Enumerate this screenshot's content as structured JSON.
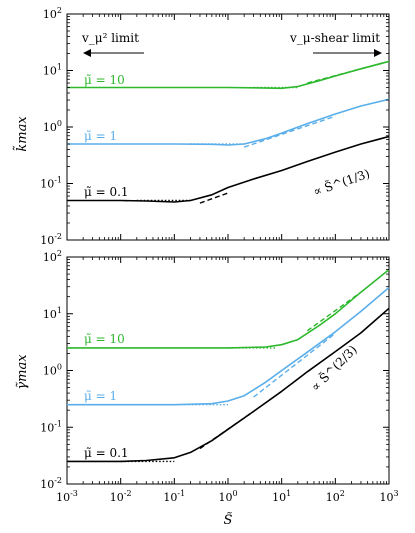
{
  "chart_data": [
    {
      "type": "line",
      "xscale": "log",
      "yscale": "log",
      "xlim": [
        0.001,
        1000
      ],
      "ylim": [
        0.01,
        100
      ],
      "ylabel": "k̃max",
      "xlabel": "",
      "grid": false,
      "x_tick_labels": [],
      "y_tick_labels": [
        "10^-2",
        "10^-1",
        "10^0",
        "10^1",
        "10^2"
      ],
      "annotations": {
        "left_limit": "v_μ² limit",
        "right_limit": "v_μ-shear limit",
        "scaling": "∝ S̃^(1/3)"
      },
      "series": [
        {
          "name": "μ̃ = 10",
          "color": "#2db82d",
          "x": [
            0.001,
            0.01,
            0.1,
            1,
            3,
            10,
            20,
            50,
            100,
            300,
            1000
          ],
          "y": [
            5.0,
            5.0,
            5.0,
            5.0,
            4.95,
            4.85,
            5.2,
            6.6,
            8.0,
            10.7,
            14.5
          ]
        },
        {
          "name": "μ̃ = 1",
          "color": "#5aaeea",
          "x": [
            0.001,
            0.01,
            0.1,
            0.5,
            1,
            2,
            5,
            10,
            30,
            100,
            300,
            1000
          ],
          "y": [
            0.5,
            0.5,
            0.5,
            0.495,
            0.48,
            0.5,
            0.62,
            0.78,
            1.15,
            1.7,
            2.35,
            3.1
          ]
        },
        {
          "name": "μ̃ = 0.1",
          "color": "#000000",
          "x": [
            0.001,
            0.01,
            0.03,
            0.1,
            0.2,
            0.5,
            1,
            3,
            10,
            30,
            100,
            300,
            1000
          ],
          "y": [
            0.05,
            0.05,
            0.049,
            0.047,
            0.05,
            0.063,
            0.085,
            0.12,
            0.17,
            0.245,
            0.36,
            0.5,
            0.68
          ]
        }
      ],
      "asymptotes": [
        {
          "color": "#2db82d",
          "style": "dotted",
          "x": [
            3,
            20
          ],
          "y": [
            5.0,
            5.0
          ]
        },
        {
          "color": "#2db82d",
          "style": "dashed",
          "x": [
            30,
            1000
          ],
          "y": [
            6.0,
            14.5
          ]
        },
        {
          "color": "#5aaeea",
          "style": "dotted",
          "x": [
            0.2,
            2
          ],
          "y": [
            0.5,
            0.5
          ]
        },
        {
          "color": "#5aaeea",
          "style": "dashed",
          "x": [
            2,
            100
          ],
          "y": [
            0.44,
            1.55
          ]
        },
        {
          "color": "#000000",
          "style": "dotted",
          "x": [
            0.02,
            0.2
          ],
          "y": [
            0.05,
            0.05
          ]
        },
        {
          "color": "#000000",
          "style": "dashed",
          "x": [
            0.3,
            1
          ],
          "y": [
            0.045,
            0.068
          ]
        }
      ],
      "series_labels": [
        "μ̃ = 10",
        "μ̃ = 1",
        "μ̃ = 0.1"
      ]
    },
    {
      "type": "line",
      "xscale": "log",
      "yscale": "log",
      "xlim": [
        0.001,
        1000
      ],
      "ylim": [
        0.01,
        100
      ],
      "ylabel": "γ̃max",
      "xlabel": "S̃",
      "grid": false,
      "x_tick_labels": [
        "10^-3",
        "10^-2",
        "10^-1",
        "10^0",
        "10^1",
        "10^2",
        "10^3"
      ],
      "y_tick_labels": [
        "10^-2",
        "10^-1",
        "10^0",
        "10^1",
        "10^2"
      ],
      "annotations": {
        "scaling": "∝ S̃^(2/3)"
      },
      "series": [
        {
          "name": "μ̃ = 10",
          "color": "#2db82d",
          "x": [
            0.001,
            0.01,
            0.1,
            1,
            5,
            10,
            20,
            50,
            100,
            300,
            1000
          ],
          "y": [
            2.5,
            2.5,
            2.5,
            2.5,
            2.6,
            2.85,
            3.5,
            6.2,
            10.0,
            24.0,
            60.0
          ]
        },
        {
          "name": "μ̃ = 1",
          "color": "#5aaeea",
          "x": [
            0.001,
            0.01,
            0.1,
            0.5,
            1,
            2,
            5,
            10,
            30,
            100,
            300,
            1000
          ],
          "y": [
            0.25,
            0.25,
            0.25,
            0.26,
            0.29,
            0.36,
            0.62,
            1.0,
            2.1,
            4.8,
            11.0,
            29.0
          ]
        },
        {
          "name": "μ̃ = 0.1",
          "color": "#000000",
          "x": [
            0.001,
            0.01,
            0.03,
            0.1,
            0.2,
            0.5,
            1,
            3,
            10,
            30,
            100,
            300,
            1000
          ],
          "y": [
            0.025,
            0.025,
            0.026,
            0.029,
            0.036,
            0.058,
            0.092,
            0.19,
            0.43,
            0.95,
            2.15,
            4.6,
            12.5
          ]
        }
      ],
      "asymptotes": [
        {
          "color": "#2db82d",
          "style": "dotted",
          "x": [
            1,
            8
          ],
          "y": [
            2.5,
            2.5
          ]
        },
        {
          "color": "#2db82d",
          "style": "dashed",
          "x": [
            30,
            300
          ],
          "y": [
            5.0,
            24.0
          ]
        },
        {
          "color": "#5aaeea",
          "style": "dotted",
          "x": [
            0.1,
            1
          ],
          "y": [
            0.25,
            0.25
          ]
        },
        {
          "color": "#5aaeea",
          "style": "dashed",
          "x": [
            3,
            100
          ],
          "y": [
            0.34,
            4.5
          ]
        },
        {
          "color": "#000000",
          "style": "dotted",
          "x": [
            0.01,
            0.1
          ],
          "y": [
            0.025,
            0.025
          ]
        },
        {
          "color": "#000000",
          "style": "dashed",
          "x": [
            0.3,
            3
          ],
          "y": [
            0.042,
            0.19
          ]
        }
      ],
      "series_labels": [
        "μ̃ = 10",
        "μ̃ = 1",
        "μ̃ = 0.1"
      ]
    }
  ]
}
